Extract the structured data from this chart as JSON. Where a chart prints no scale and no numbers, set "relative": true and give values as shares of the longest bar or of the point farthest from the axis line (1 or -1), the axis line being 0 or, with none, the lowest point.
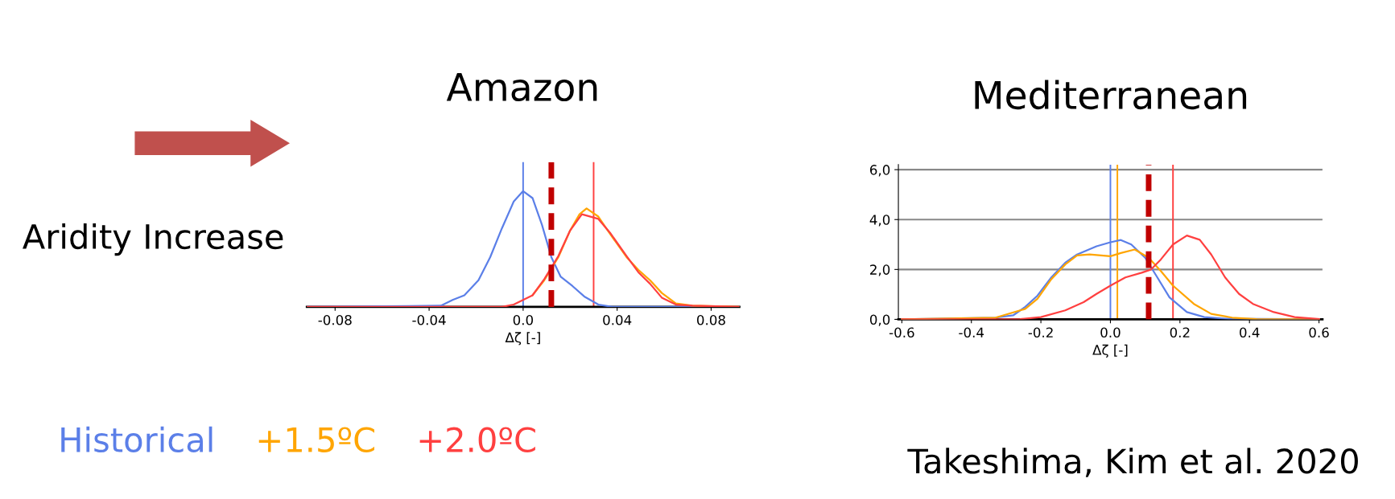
{
  "chart_data": [
    {
      "type": "line",
      "title": "Amazon",
      "xlabel": "Δζ [-]",
      "relative": true,
      "xlim": [
        -0.092,
        0.092
      ],
      "xticks": [
        -0.08,
        -0.04,
        {
          "value": 0,
          "label": "0.0"
        },
        0.04,
        0.08
      ],
      "legend": "bottom",
      "marker": "none",
      "series": [
        {
          "name": "Historical",
          "color": "#5b7fe8",
          "x": [
            -0.092,
            -0.035,
            -0.03,
            -0.025,
            -0.019,
            -0.014,
            -0.009,
            -0.004,
            0.0,
            0.004,
            0.008,
            0.012,
            0.016,
            0.021,
            0.026,
            0.032,
            0.038,
            0.092
          ],
          "values": [
            0,
            0.01,
            0.06,
            0.1,
            0.23,
            0.43,
            0.68,
            0.91,
            1.0,
            0.94,
            0.71,
            0.43,
            0.26,
            0.18,
            0.09,
            0.02,
            0,
            0
          ]
        },
        {
          "name": "+1.5ºC",
          "color": "#ffa500",
          "x": [
            0.004,
            0.009,
            0.015,
            0.02,
            0.024,
            0.027,
            0.032,
            0.037,
            0.044,
            0.049,
            0.054,
            0.059,
            0.065,
            0.072,
            0.092
          ],
          "values": [
            0.1,
            0.23,
            0.43,
            0.66,
            0.8,
            0.85,
            0.78,
            0.63,
            0.43,
            0.32,
            0.23,
            0.12,
            0.03,
            0.01,
            0
          ]
        },
        {
          "name": "+2.0ºC",
          "color": "#ff4040",
          "x": [
            -0.092,
            -0.009,
            -0.004,
            0.004,
            0.009,
            0.015,
            0.02,
            0.025,
            0.032,
            0.037,
            0.044,
            0.049,
            0.054,
            0.059,
            0.065,
            0.072,
            0.092
          ],
          "values": [
            0,
            0,
            0.02,
            0.1,
            0.24,
            0.44,
            0.66,
            0.8,
            0.76,
            0.64,
            0.44,
            0.3,
            0.2,
            0.08,
            0.02,
            0.01,
            0
          ]
        }
      ],
      "ref_lines": [
        {
          "axis": "x",
          "value": 0.0,
          "color": "#5b7fe8",
          "line_style": "solid"
        },
        {
          "axis": "x",
          "value": 0.03,
          "color": "#ff4040",
          "line_style": "solid"
        },
        {
          "axis": "x",
          "value": 0.012,
          "color": "#c00000",
          "line_style": "dashed"
        }
      ],
      "annotations": [
        "Aridity Increase"
      ]
    },
    {
      "type": "line",
      "title": "Mediterranean",
      "xlabel": "Δζ [-]",
      "xlim": [
        -0.61,
        0.61
      ],
      "xticks": [
        -0.6,
        -0.4,
        -0.2,
        {
          "value": 0,
          "label": "0.0"
        },
        0.2,
        0.4,
        0.6
      ],
      "ylim": [
        0,
        6.2
      ],
      "yticks": [
        {
          "value": 0,
          "label": "0,0"
        },
        {
          "value": 2,
          "label": "2,0"
        },
        {
          "value": 4,
          "label": "4,0"
        },
        {
          "value": 6,
          "label": "6,0"
        }
      ],
      "grid": "y",
      "marker": "none",
      "series": [
        {
          "color": "#5b7fe8",
          "x": [
            -0.6,
            -0.33,
            -0.28,
            -0.245,
            -0.21,
            -0.17,
            -0.13,
            -0.096,
            -0.04,
            0.0,
            0.03,
            0.06,
            0.1,
            0.135,
            0.17,
            0.22,
            0.27,
            0.33,
            0.6
          ],
          "values": [
            0,
            0.07,
            0.16,
            0.5,
            0.95,
            1.68,
            2.27,
            2.6,
            2.93,
            3.09,
            3.18,
            3.0,
            2.47,
            1.68,
            0.88,
            0.29,
            0.09,
            0.03,
            0
          ]
        },
        {
          "color": "#ffa500",
          "x": [
            -0.6,
            -0.33,
            -0.245,
            -0.21,
            -0.17,
            -0.13,
            -0.096,
            -0.06,
            0.0,
            0.03,
            0.07,
            0.11,
            0.145,
            0.18,
            0.24,
            0.29,
            0.35,
            0.42,
            0.6
          ],
          "values": [
            0,
            0.07,
            0.42,
            0.82,
            1.61,
            2.2,
            2.56,
            2.6,
            2.53,
            2.66,
            2.8,
            2.47,
            1.94,
            1.35,
            0.62,
            0.22,
            0.07,
            0.01,
            0
          ]
        },
        {
          "color": "#ff4040",
          "x": [
            -0.6,
            -0.26,
            -0.2,
            -0.13,
            -0.077,
            -0.04,
            0.0,
            0.043,
            0.09,
            0.117,
            0.145,
            0.18,
            0.22,
            0.257,
            0.29,
            0.33,
            0.37,
            0.41,
            0.47,
            0.53,
            0.6
          ],
          "values": [
            0,
            0.01,
            0.09,
            0.36,
            0.69,
            1.02,
            1.35,
            1.68,
            1.87,
            2.0,
            2.4,
            3.0,
            3.36,
            3.19,
            2.6,
            1.68,
            1.02,
            0.62,
            0.29,
            0.09,
            0.01
          ]
        }
      ],
      "ref_lines": [
        {
          "axis": "x",
          "value": 0.0,
          "color": "#5b7fe8",
          "line_style": "solid"
        },
        {
          "axis": "x",
          "value": 0.02,
          "color": "#ffa500",
          "line_style": "solid"
        },
        {
          "axis": "x",
          "value": 0.18,
          "color": "#ff4040",
          "line_style": "solid"
        },
        {
          "axis": "x",
          "value": 0.11,
          "color": "#c00000",
          "line_style": "dashed"
        }
      ],
      "annotations": [
        "Takeshima, Kim et al. 2020"
      ]
    }
  ]
}
